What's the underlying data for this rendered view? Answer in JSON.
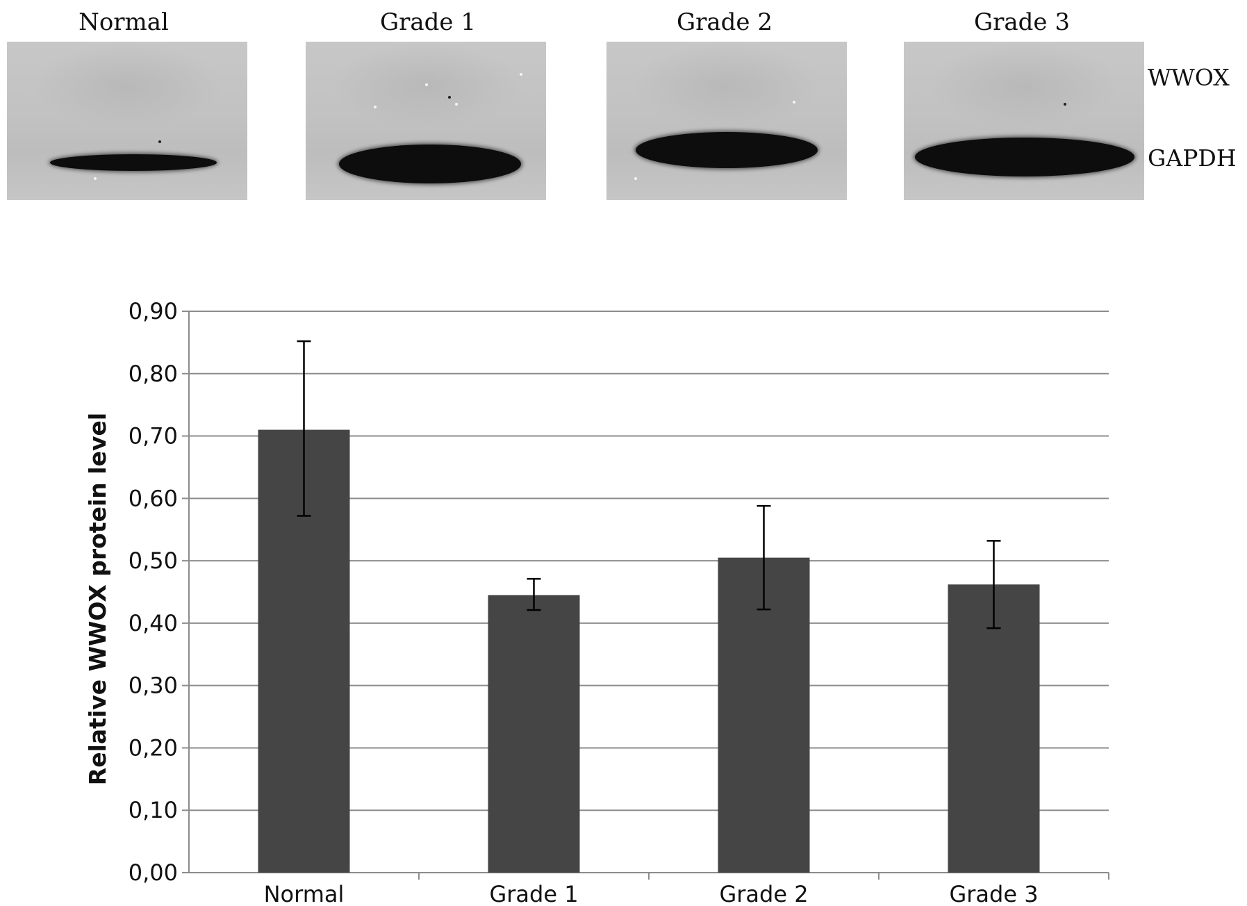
{
  "blot": {
    "lanes": [
      {
        "label": "Normal",
        "band_intensity": "thin"
      },
      {
        "label": "Grade 1",
        "band_intensity": "strong"
      },
      {
        "label": "Grade 2",
        "band_intensity": "strong"
      },
      {
        "label": "Grade 3",
        "band_intensity": "strong"
      }
    ],
    "rows": [
      "WWOX",
      "GAPDH"
    ]
  },
  "chart_data": {
    "type": "bar",
    "categories": [
      "Normal",
      "Grade 1",
      "Grade 2",
      "Grade 3"
    ],
    "values": [
      0.71,
      0.445,
      0.505,
      0.462
    ],
    "error_upper": [
      0.852,
      0.471,
      0.588,
      0.532
    ],
    "error_lower": [
      0.572,
      0.421,
      0.422,
      0.392
    ],
    "ylabel": "Relative WWOX protein level",
    "xlabel": "",
    "ylim": [
      0,
      0.9
    ],
    "yticks": [
      "0,00",
      "0,10",
      "0,20",
      "0,30",
      "0,40",
      "0,50",
      "0,60",
      "0,70",
      "0,80",
      "0,90"
    ],
    "grid": true,
    "bar_color": "#454545",
    "grid_color": "#8c8c8c",
    "error_color": "#000000"
  }
}
